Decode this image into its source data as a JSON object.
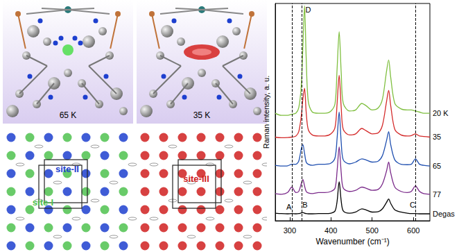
{
  "chart_data": {
    "type": "line",
    "x_label": "Wavenumber (cm⁻¹)",
    "y_label": "Raman intensity, a. u.",
    "xlim": [
      265,
      640
    ],
    "xticks": [
      300,
      400,
      500,
      600
    ],
    "ylim": [
      0,
      10
    ],
    "tick_labels": "x",
    "vlines": [
      305,
      330,
      605
    ],
    "annotations": [
      {
        "text": "A",
        "x": 298,
        "y": 0.65
      },
      {
        "text": "B",
        "x": 337,
        "y": 0.75
      },
      {
        "text": "C",
        "x": 598,
        "y": 0.75
      },
      {
        "text": "D",
        "x": 345,
        "y": 9.7
      }
    ],
    "x": [
      265,
      280,
      295,
      305,
      315,
      322,
      328,
      332,
      336,
      340,
      345,
      355,
      370,
      385,
      400,
      410,
      415,
      420,
      425,
      430,
      445,
      460,
      475,
      485,
      500,
      515,
      525,
      535,
      540,
      545,
      555,
      570,
      585,
      595,
      605,
      615,
      625,
      640
    ],
    "series": [
      {
        "name": "20 K",
        "color": "#7fbf3f",
        "values": [
          4.95,
          4.85,
          4.85,
          4.9,
          4.95,
          5.2,
          6.2,
          8.0,
          9.9,
          7.5,
          5.5,
          5.0,
          4.95,
          4.95,
          5.05,
          5.4,
          7.0,
          8.7,
          6.8,
          5.4,
          5.05,
          5.1,
          5.4,
          5.3,
          5.1,
          5.2,
          5.6,
          6.9,
          7.4,
          6.6,
          5.4,
          5.15,
          5.1,
          5.1,
          5.05,
          5.0,
          4.95,
          4.95
        ]
      },
      {
        "name": "35",
        "color": "#d42a2a",
        "values": [
          3.85,
          3.82,
          3.83,
          3.85,
          3.9,
          4.1,
          4.8,
          5.6,
          6.1,
          5.0,
          4.2,
          3.95,
          3.9,
          3.9,
          4.0,
          4.3,
          5.4,
          6.7,
          5.2,
          4.2,
          3.95,
          4.0,
          4.25,
          4.15,
          4.0,
          4.05,
          4.4,
          5.5,
          6.0,
          5.3,
          4.2,
          3.95,
          3.9,
          3.92,
          4.0,
          3.9,
          3.88,
          3.85
        ]
      },
      {
        "name": "65",
        "color": "#1f4fb0",
        "values": [
          2.55,
          2.52,
          2.53,
          2.6,
          2.6,
          2.75,
          3.3,
          3.5,
          3.1,
          2.7,
          2.6,
          2.55,
          2.6,
          2.6,
          2.65,
          2.9,
          3.8,
          5.0,
          3.6,
          2.8,
          2.62,
          2.7,
          2.85,
          2.8,
          2.7,
          2.75,
          3.0,
          3.7,
          4.1,
          3.5,
          2.8,
          2.6,
          2.58,
          2.6,
          2.85,
          2.6,
          2.55,
          2.52
        ]
      },
      {
        "name": "77",
        "color": "#7a2a8a",
        "values": [
          1.25,
          1.22,
          1.3,
          1.55,
          1.3,
          1.35,
          1.7,
          1.9,
          1.6,
          1.35,
          1.28,
          1.25,
          1.3,
          1.3,
          1.35,
          1.5,
          2.3,
          3.4,
          2.2,
          1.5,
          1.35,
          1.4,
          1.55,
          1.5,
          1.4,
          1.45,
          1.7,
          2.3,
          2.7,
          2.2,
          1.55,
          1.35,
          1.3,
          1.35,
          1.6,
          1.35,
          1.25,
          1.22
        ]
      },
      {
        "name": "Degas",
        "color": "#000000",
        "values": [
          0.35,
          0.33,
          0.32,
          0.33,
          0.32,
          0.33,
          0.36,
          0.38,
          0.35,
          0.33,
          0.32,
          0.32,
          0.33,
          0.33,
          0.35,
          0.45,
          0.9,
          1.8,
          0.9,
          0.45,
          0.35,
          0.4,
          0.55,
          0.5,
          0.4,
          0.42,
          0.55,
          0.85,
          1.0,
          0.8,
          0.5,
          0.4,
          0.35,
          0.33,
          0.33,
          0.32,
          0.32,
          0.32
        ]
      }
    ]
  },
  "panels": {
    "top_left": {
      "label": "65 K"
    },
    "top_right": {
      "label": "35 K"
    },
    "bottom_left": {
      "sites": [
        {
          "text": "site-II",
          "color": "#1d3fcf"
        },
        {
          "text": "site-I",
          "color": "#4fc24f"
        }
      ]
    },
    "bottom_right": {
      "sites": [
        {
          "text": "site-III",
          "color": "#d02020"
        }
      ]
    }
  }
}
